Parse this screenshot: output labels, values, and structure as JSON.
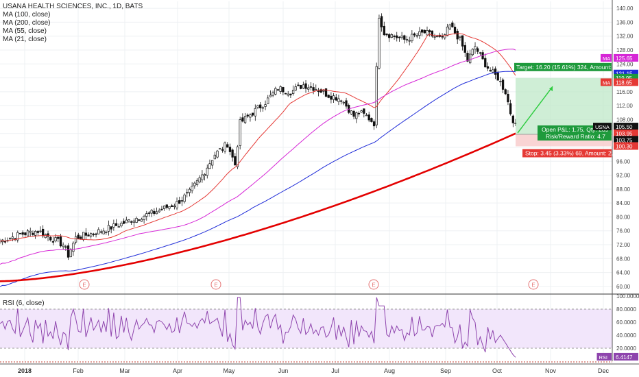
{
  "chart_data": {
    "type": "candlestick",
    "title": "USANA HEALTH SCIENCES, INC., 1D, BATS",
    "indicators": [
      "MA (100, close)",
      "MA (200, close)",
      "MA (55, close)",
      "MA (21, close)"
    ],
    "rsi_label": "RSI (6, close)",
    "x_tick_labels": [
      "2018",
      "Feb",
      "Mar",
      "Apr",
      "May",
      "Jun",
      "Jul",
      "Aug",
      "Sep",
      "Oct",
      "Nov",
      "Dec"
    ],
    "price_ticks": [
      "140.00",
      "136.00",
      "132.00",
      "128.00",
      "124.00",
      "120.00",
      "116.00",
      "112.00",
      "108.00",
      "104.00",
      "100.00",
      "96.00",
      "92.00",
      "88.00",
      "84.00",
      "80.00",
      "76.00",
      "72.00",
      "68.00",
      "64.00",
      "60.00"
    ],
    "rsi_ticks": [
      "100.0000",
      "80.0000",
      "60.0000",
      "40.0000",
      "20.0000"
    ],
    "ylim": [
      58,
      142
    ],
    "rsi_ylim": [
      0,
      100
    ],
    "earnings_marker": "E",
    "earnings_months": [
      "Feb",
      "May",
      "Jul",
      "Oct"
    ],
    "price_tags": [
      {
        "label": "MA",
        "value": "125.65",
        "color": "#d626d6"
      },
      {
        "label": "",
        "value": "121.15",
        "color": "#1f2cd8"
      },
      {
        "label": "",
        "value": "119.95",
        "color": "#1e9a3c"
      },
      {
        "label": "MA",
        "value": "118.65",
        "color": "#e53935"
      },
      {
        "label": "USNA",
        "value": "105.50",
        "color": "#111111"
      },
      {
        "label": "",
        "value": "103.95",
        "color": "#e53935"
      },
      {
        "label": "",
        "value": "103.75",
        "color": "#111111"
      },
      {
        "label": "",
        "value": "100.30",
        "color": "#e53935"
      },
      {
        "label": "RSI",
        "value": "6.4147",
        "color": "#8e44ad"
      }
    ],
    "trade": {
      "target_text": "Target: 16.20 (15.61%) 324, Amount: ...",
      "open_pl_text": "Open P&L: 1.75, Qty: 289",
      "risk_reward_text": "Risk/Reward Ratio: 4.7",
      "stop_text": "Stop: 3.45 (3.33%) 69, Amount: 2...",
      "entry": 103.75,
      "target": 119.95,
      "stop": 100.3
    },
    "price_series": [
      {
        "month": "Jan",
        "close": 74
      },
      {
        "month": "Feb",
        "close": 77
      },
      {
        "month": "Mar",
        "close": 79
      },
      {
        "month": "Apr",
        "close": 91
      },
      {
        "month": "May",
        "close": 107
      },
      {
        "month": "Jun",
        "close": 116
      },
      {
        "month": "Jul",
        "close": 110
      },
      {
        "month": "Aug",
        "close": 131
      },
      {
        "month": "Sep",
        "close": 122
      },
      {
        "month": "Oct",
        "close": 105.5
      }
    ],
    "ma_colors": {
      "ma21": "#e53935",
      "ma55": "#d626d6",
      "ma100": "#1f2cd8",
      "ma200": "#e30000"
    },
    "rsi_color": "#8e44ad"
  }
}
